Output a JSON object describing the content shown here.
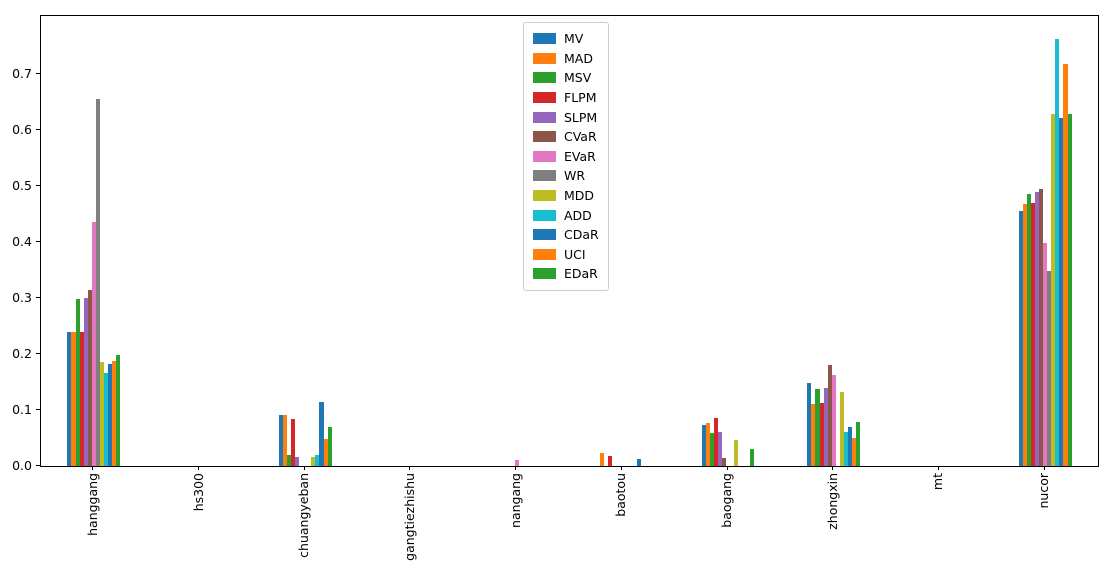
{
  "figure": {
    "title": ""
  },
  "chart_data": {
    "type": "bar",
    "title": "",
    "xlabel": "",
    "ylabel": "",
    "grid": false,
    "legend_position": "upper center",
    "ylim": [
      0,
      0.804
    ],
    "y_ticks": [
      0.0,
      0.1,
      0.2,
      0.3,
      0.4,
      0.5,
      0.6,
      0.7
    ],
    "categories": [
      "hanggang",
      "hs300",
      "chuangyeban",
      "gangtiezhishu",
      "nangang",
      "baotou",
      "baogang",
      "zhongxin",
      "mt",
      "nucor"
    ],
    "series": [
      {
        "name": "MV",
        "color": "#1f77b4",
        "values": [
          0.24,
          0,
          0.091,
          0,
          0,
          0,
          0.073,
          0.148,
          0,
          0.455
        ]
      },
      {
        "name": "MAD",
        "color": "#ff7f0e",
        "values": [
          0.24,
          0,
          0.091,
          0,
          0,
          0.023,
          0.077,
          0.111,
          0,
          0.468
        ]
      },
      {
        "name": "MSV",
        "color": "#2ca02c",
        "values": [
          0.298,
          0,
          0.019,
          0,
          0,
          0,
          0.059,
          0.138,
          0,
          0.486
        ]
      },
      {
        "name": "FLPM",
        "color": "#d62728",
        "values": [
          0.24,
          0,
          0.084,
          0,
          0,
          0.018,
          0.086,
          0.112,
          0,
          0.47
        ]
      },
      {
        "name": "SLPM",
        "color": "#9467bd",
        "values": [
          0.3,
          0,
          0.016,
          0,
          0,
          0,
          0.061,
          0.139,
          0,
          0.49
        ]
      },
      {
        "name": "CVaR",
        "color": "#8c564b",
        "values": [
          0.314,
          0,
          0,
          0,
          0,
          0,
          0.015,
          0.18,
          0,
          0.495
        ]
      },
      {
        "name": "EVaR",
        "color": "#e377c2",
        "values": [
          0.436,
          0,
          0,
          0,
          0.01,
          0,
          0,
          0.163,
          0,
          0.398
        ]
      },
      {
        "name": "WR",
        "color": "#7f7f7f",
        "values": [
          0.655,
          0,
          0,
          0,
          0,
          0,
          0,
          0,
          0,
          0.348
        ]
      },
      {
        "name": "MDD",
        "color": "#bcbd22",
        "values": [
          0.186,
          0,
          0.016,
          0,
          0,
          0,
          0.046,
          0.132,
          0,
          0.629
        ]
      },
      {
        "name": "ADD",
        "color": "#17becf",
        "values": [
          0.166,
          0,
          0.019,
          0,
          0,
          0,
          0,
          0.06,
          0,
          0.763
        ]
      },
      {
        "name": "CDaR",
        "color": "#1f77b4",
        "values": [
          0.182,
          0,
          0.114,
          0,
          0,
          0.013,
          0,
          0.07,
          0,
          0.621
        ]
      },
      {
        "name": "UCI",
        "color": "#ff7f0e",
        "values": [
          0.188,
          0,
          0.049,
          0,
          0,
          0,
          0,
          0.05,
          0,
          0.718
        ]
      },
      {
        "name": "EDaR",
        "color": "#2ca02c",
        "values": [
          0.198,
          0,
          0.07,
          0,
          0,
          0,
          0.031,
          0.079,
          0,
          0.629
        ]
      }
    ]
  }
}
